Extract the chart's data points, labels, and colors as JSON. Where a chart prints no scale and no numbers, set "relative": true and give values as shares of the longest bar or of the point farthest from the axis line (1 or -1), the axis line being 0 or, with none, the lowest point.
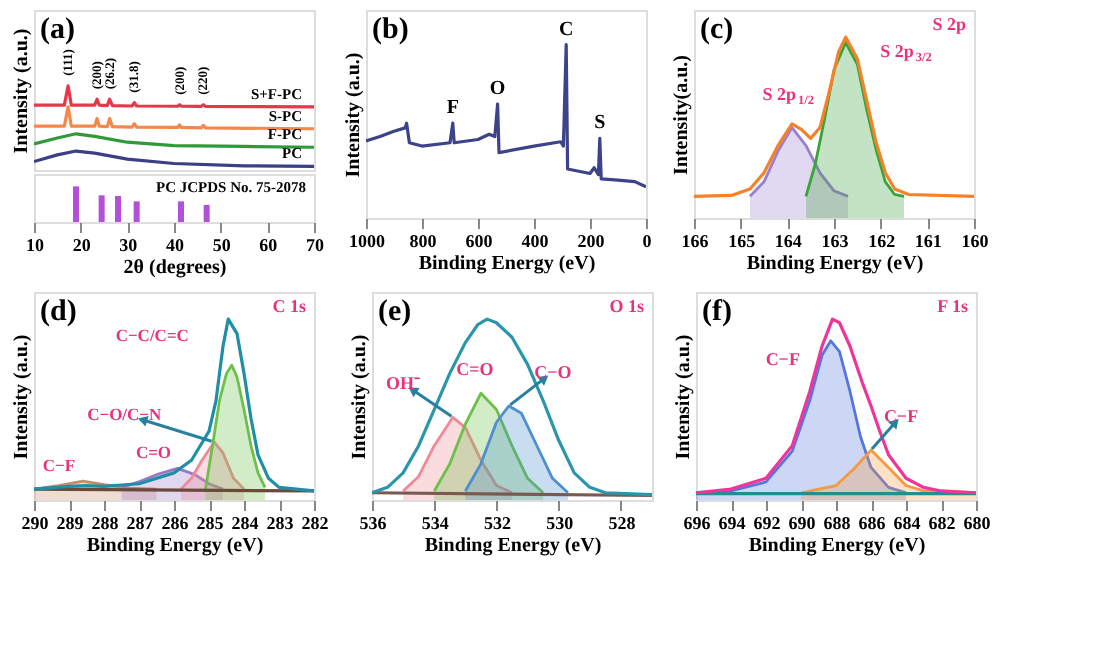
{
  "chart_data": [
    {
      "type": "line",
      "relative": true,
      "xlim": [
        10,
        70
      ],
      "xticks": [
        10,
        20,
        30,
        40,
        50,
        60,
        70
      ],
      "tick_labels": false,
      "ylabel": "Intensity (a.u.)",
      "annotations": [
        "(a)",
        {
          "text": "(111)",
          "x": 17.3,
          "y": 1.0
        },
        {
          "text": "(200)",
          "x": 23.5,
          "y": 0.84
        },
        {
          "text": "(26.2)",
          "x": 26.2,
          "y": 0.84
        },
        {
          "text": "(31.8)",
          "x": 31.5,
          "y": 0.8
        },
        {
          "text": "(200)",
          "x": 41.2,
          "y": 0.775
        },
        {
          "text": "(220)",
          "x": 46.3,
          "y": 0.775
        }
      ],
      "series": [
        {
          "name": "S+F-PC",
          "color": "#e8364b",
          "x": [
            10,
            16.5,
            17.3,
            18,
            23,
            23.5,
            24,
            25.7,
            26.2,
            26.8,
            31,
            31.5,
            32,
            40.8,
            41.2,
            41.6,
            45.8,
            46.3,
            46.8,
            70
          ],
          "values": [
            0.77,
            0.77,
            1.0,
            0.77,
            0.77,
            0.84,
            0.77,
            0.765,
            0.84,
            0.765,
            0.76,
            0.8,
            0.76,
            0.757,
            0.775,
            0.757,
            0.755,
            0.775,
            0.755,
            0.75
          ]
        },
        {
          "name": "S-PC",
          "color": "#f4874b",
          "x": [
            10,
            16.5,
            17.3,
            18,
            23,
            23.5,
            24,
            25.7,
            26.2,
            26.8,
            31,
            31.5,
            32,
            40.8,
            41.2,
            41.6,
            45.8,
            46.3,
            46.8,
            70
          ],
          "values": [
            0.52,
            0.52,
            0.75,
            0.52,
            0.52,
            0.61,
            0.52,
            0.515,
            0.61,
            0.515,
            0.51,
            0.55,
            0.51,
            0.505,
            0.535,
            0.505,
            0.5,
            0.53,
            0.5,
            0.49
          ]
        },
        {
          "name": "F-PC",
          "color": "#2e9a3a",
          "x": [
            10,
            15,
            19,
            23,
            30,
            40,
            55,
            70
          ],
          "values": [
            0.31,
            0.38,
            0.43,
            0.4,
            0.33,
            0.29,
            0.28,
            0.27
          ]
        },
        {
          "name": "PC",
          "color": "#3a3f86",
          "x": [
            10,
            15,
            19,
            23,
            30,
            40,
            55,
            70
          ],
          "values": [
            0.1,
            0.18,
            0.225,
            0.2,
            0.13,
            0.077,
            0.05,
            0.043
          ]
        }
      ]
    },
    {
      "type": "bar",
      "relative": true,
      "xlim": [
        10,
        70
      ],
      "xticks": [
        10,
        20,
        30,
        40,
        50,
        60,
        70
      ],
      "xlabel": "2θ (degrees)",
      "annotations": [
        "PC JCPDS No. 75-2078"
      ],
      "x": [
        19,
        24.5,
        28,
        32,
        41.5,
        47
      ],
      "values": [
        1.0,
        0.75,
        0.73,
        0.58,
        0.58,
        0.48
      ],
      "color": "#b44fd8"
    },
    {
      "type": "line",
      "relative": true,
      "xlim": [
        1000,
        0
      ],
      "xticks": [
        1000,
        800,
        600,
        400,
        200,
        0
      ],
      "xlabel": "Binding Energy (eV)",
      "ylabel": "Intensity (a.u.)",
      "annotations": [
        "(b)",
        {
          "text": "C",
          "x": 285,
          "y": 1.0
        },
        {
          "text": "O",
          "x": 530,
          "y": 0.657
        },
        {
          "text": "F",
          "x": 690,
          "y": 0.547
        },
        {
          "text": "S",
          "x": 165,
          "y": 0.46
        }
      ],
      "series": [
        {
          "color": "#3c4389",
          "x": [
            1000,
            950,
            900,
            860,
            855,
            845,
            800,
            700,
            690,
            685,
            600,
            560,
            540,
            530,
            525,
            400,
            305,
            295,
            285,
            280,
            200,
            185,
            170,
            165,
            160,
            100,
            40,
            0
          ],
          "values": [
            0.445,
            0.47,
            0.5,
            0.52,
            0.547,
            0.434,
            0.415,
            0.434,
            0.547,
            0.434,
            0.453,
            0.483,
            0.47,
            0.657,
            0.377,
            0.415,
            0.44,
            0.415,
            1.0,
            0.283,
            0.257,
            0.29,
            0.25,
            0.46,
            0.226,
            0.219,
            0.21,
            0.18
          ]
        }
      ]
    },
    {
      "type": "line",
      "relative": true,
      "xlim": [
        166,
        160
      ],
      "xticks": [
        166,
        165,
        164,
        163,
        162,
        161,
        160
      ],
      "xlabel": "Binding Energy (eV)",
      "ylabel": "Intensity(a.u.)",
      "annotations": [
        "(c)",
        "S 2p",
        {
          "text": "S 2p$_{1/2}$",
          "x": 163.9,
          "y": 0.5
        },
        {
          "text": "S 2p$_{3/2}$",
          "x": 162.75,
          "y": 0.97
        }
      ],
      "series": [
        {
          "type": "area",
          "color": "#9b7fd0",
          "x": [
            164.8,
            164.5,
            164.2,
            163.9,
            163.6,
            163.3,
            163.0,
            162.7
          ],
          "values": [
            0.12,
            0.2,
            0.37,
            0.5,
            0.4,
            0.25,
            0.15,
            0.12
          ]
        },
        {
          "type": "area",
          "color": "#3aa33a",
          "x": [
            163.6,
            163.4,
            163.2,
            163.0,
            162.75,
            162.5,
            162.3,
            162.1,
            161.9,
            161.7,
            161.5
          ],
          "values": [
            0.12,
            0.3,
            0.55,
            0.82,
            0.97,
            0.85,
            0.6,
            0.38,
            0.2,
            0.13,
            0.12
          ]
        },
        {
          "type": "line",
          "color": "#f5822a",
          "x": [
            166,
            165.2,
            164.8,
            164.5,
            164.2,
            163.9,
            163.7,
            163.5,
            163.3,
            163.1,
            162.9,
            162.75,
            162.5,
            162.3,
            162.1,
            161.9,
            161.7,
            161.4,
            160
          ],
          "values": [
            0.12,
            0.125,
            0.16,
            0.25,
            0.4,
            0.52,
            0.49,
            0.44,
            0.5,
            0.7,
            0.92,
            1.0,
            0.88,
            0.65,
            0.42,
            0.25,
            0.16,
            0.13,
            0.12
          ]
        }
      ]
    },
    {
      "type": "line",
      "relative": true,
      "xlim": [
        290,
        282
      ],
      "xticks": [
        290,
        289,
        288,
        287,
        286,
        285,
        284,
        283,
        282
      ],
      "xlabel": "Binding Energy (eV)",
      "ylabel": "Intensity (a.u.)",
      "annotations": [
        "(d)",
        "C 1s",
        {
          "text": "C−C/C=C",
          "x": 284.45,
          "y": 1.0
        },
        {
          "text": "C−O/C−N",
          "x": 284.85,
          "y": 0.32
        },
        {
          "text": "C=O",
          "x": 285.9,
          "y": 0.175
        },
        {
          "text": "C−F",
          "x": 288.6,
          "y": 0.105
        }
      ],
      "series": [
        {
          "type": "area",
          "color": "#c98a6a",
          "x": [
            290,
            289.3,
            288.6,
            288,
            287.3,
            286.5
          ],
          "values": [
            0.06,
            0.08,
            0.105,
            0.085,
            0.065,
            0.06
          ]
        },
        {
          "type": "area",
          "color": "#9a7ac8",
          "x": [
            287.5,
            287,
            286.5,
            285.9,
            285.4,
            285,
            284.6
          ],
          "values": [
            0.07,
            0.1,
            0.14,
            0.175,
            0.14,
            0.09,
            0.06
          ]
        },
        {
          "type": "area",
          "color": "#f08a9a",
          "x": [
            285.8,
            285.5,
            285.2,
            284.85,
            284.6,
            284.3,
            284
          ],
          "values": [
            0.06,
            0.12,
            0.22,
            0.32,
            0.26,
            0.12,
            0.06
          ]
        },
        {
          "type": "area",
          "color": "#6cc04a",
          "x": [
            285.1,
            284.9,
            284.7,
            284.5,
            284.35,
            284.2,
            284,
            283.8,
            283.6,
            283.4
          ],
          "values": [
            0.06,
            0.3,
            0.55,
            0.7,
            0.745,
            0.68,
            0.5,
            0.3,
            0.15,
            0.07
          ]
        },
        {
          "type": "line",
          "color": "#6b4a3a",
          "x": [
            290,
            282
          ],
          "values": [
            0.06,
            0.05
          ]
        },
        {
          "type": "line",
          "color": "#1f8fa5",
          "x": [
            290,
            289,
            288.5,
            288,
            287,
            286,
            285.5,
            285,
            284.8,
            284.6,
            284.45,
            284.2,
            284,
            283.8,
            283.6,
            283.3,
            283,
            282
          ],
          "values": [
            0.06,
            0.075,
            0.08,
            0.075,
            0.09,
            0.15,
            0.22,
            0.38,
            0.55,
            0.85,
            1.0,
            0.92,
            0.7,
            0.45,
            0.25,
            0.12,
            0.07,
            0.05
          ]
        }
      ]
    },
    {
      "type": "line",
      "relative": true,
      "xlim": [
        536,
        527
      ],
      "xticks": [
        536,
        534,
        532,
        530,
        528
      ],
      "xlabel": "Binding Energy (eV)",
      "ylabel": "Intensity (a.u.)",
      "annotations": [
        "(e)",
        "O 1s",
        {
          "text": "OH⁻",
          "x": 533.4,
          "y": 0.457
        },
        {
          "text": "C=O",
          "x": 532.5,
          "y": 0.59
        },
        {
          "text": "C−O",
          "x": 531.6,
          "y": 0.52
        }
      ],
      "series": [
        {
          "type": "area",
          "color": "#f08a95",
          "x": [
            535,
            534.5,
            534,
            533.4,
            533,
            532.5,
            532,
            531.5
          ],
          "values": [
            0.05,
            0.13,
            0.3,
            0.457,
            0.4,
            0.22,
            0.08,
            0.04
          ]
        },
        {
          "type": "area",
          "color": "#6cc04a",
          "x": [
            534,
            533.5,
            533,
            532.5,
            532,
            531.5,
            531,
            530.5
          ],
          "values": [
            0.05,
            0.2,
            0.42,
            0.59,
            0.5,
            0.3,
            0.12,
            0.04
          ]
        },
        {
          "type": "area",
          "color": "#4d8fd0",
          "x": [
            533,
            532.5,
            532,
            531.6,
            531.2,
            530.7,
            530.2,
            529.7
          ],
          "values": [
            0.05,
            0.2,
            0.43,
            0.52,
            0.48,
            0.3,
            0.12,
            0.04
          ]
        },
        {
          "type": "line",
          "color": "#7a5a50",
          "x": [
            536,
            527
          ],
          "values": [
            0.04,
            0.025
          ]
        },
        {
          "type": "line",
          "color": "#2a95ab",
          "x": [
            536,
            535.5,
            535,
            534.5,
            534,
            533.5,
            533,
            532.6,
            532.3,
            532,
            531.5,
            531,
            530.5,
            530,
            529.5,
            529,
            528.5,
            527
          ],
          "values": [
            0.04,
            0.07,
            0.15,
            0.3,
            0.5,
            0.7,
            0.87,
            0.97,
            1.0,
            0.98,
            0.9,
            0.75,
            0.55,
            0.33,
            0.15,
            0.07,
            0.04,
            0.03
          ]
        }
      ]
    },
    {
      "type": "line",
      "relative": true,
      "xlim": [
        696,
        680
      ],
      "xticks": [
        696,
        694,
        692,
        690,
        688,
        686,
        684,
        682,
        680
      ],
      "xlabel": "Binding Energy (eV)",
      "ylabel": "Intensity (a.u.)",
      "annotations": [
        "(f)",
        "F 1s",
        {
          "text": "C−F",
          "x": 688.3,
          "y": 0.88
        },
        {
          "text": "C−F",
          "x": 686,
          "y": 0.276
        }
      ],
      "series": [
        {
          "type": "area",
          "color": "#5577dd",
          "x": [
            696,
            694,
            692,
            690.5,
            689.5,
            688.8,
            688.3,
            687.8,
            687.2,
            686.6,
            686,
            685,
            684
          ],
          "values": [
            0.04,
            0.05,
            0.1,
            0.27,
            0.55,
            0.8,
            0.88,
            0.82,
            0.6,
            0.35,
            0.18,
            0.07,
            0.04
          ]
        },
        {
          "type": "area",
          "color": "#f59a40",
          "x": [
            690,
            688,
            687,
            686,
            685,
            684,
            683,
            680
          ],
          "values": [
            0.04,
            0.08,
            0.17,
            0.276,
            0.18,
            0.08,
            0.05,
            0.04
          ]
        },
        {
          "type": "line",
          "color": "#1f8f8f",
          "x": [
            696,
            680
          ],
          "values": [
            0.035,
            0.035
          ]
        },
        {
          "type": "line",
          "color": "#f0359a",
          "x": [
            696,
            694,
            692,
            690.5,
            689.5,
            688.8,
            688.2,
            687.8,
            687.2,
            686.5,
            686,
            685.5,
            685,
            684,
            683,
            682,
            680
          ],
          "values": [
            0.04,
            0.06,
            0.12,
            0.3,
            0.6,
            0.85,
            1.0,
            0.98,
            0.85,
            0.65,
            0.52,
            0.38,
            0.25,
            0.12,
            0.07,
            0.05,
            0.04
          ]
        }
      ]
    }
  ]
}
